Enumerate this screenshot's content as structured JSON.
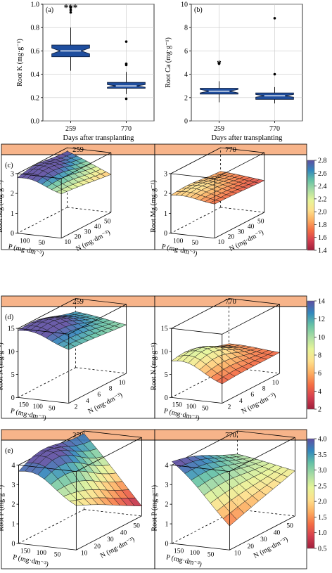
{
  "chart_data": [
    {
      "id": "a",
      "type": "boxplot",
      "panel_label": "(a)",
      "ylabel": "Root K (mg·g⁻¹)",
      "xlabel": "Days after transplanting",
      "categories": [
        "259",
        "770"
      ],
      "ylim": [
        0,
        1.0
      ],
      "yticks": [
        "0.0",
        "0.2",
        "0.4",
        "0.6",
        "0.8",
        "1.0"
      ],
      "boxes": [
        {
          "q1": 0.55,
          "median": 0.6,
          "q3": 0.65,
          "notch": 0.025,
          "whisker_low": 0.43,
          "whisker_high": 0.8,
          "outliers": [
            0.93,
            0.95,
            0.97
          ]
        },
        {
          "q1": 0.28,
          "median": 0.3,
          "q3": 0.33,
          "notch": 0.012,
          "whisker_low": 0.23,
          "whisker_high": 0.42,
          "outliers": [
            0.19,
            0.48,
            0.49,
            0.68
          ]
        }
      ],
      "annotation": "***",
      "fill_color": "#1f4e9e",
      "grid": true
    },
    {
      "id": "b",
      "type": "boxplot",
      "panel_label": "(b)",
      "ylabel": "Root Ca (mg·g⁻¹)",
      "xlabel": "Days after transplanting",
      "categories": [
        "259",
        "770"
      ],
      "ylim": [
        0,
        10
      ],
      "yticks": [
        "0",
        "2",
        "4",
        "6",
        "8",
        "10"
      ],
      "boxes": [
        {
          "q1": 2.3,
          "median": 2.55,
          "q3": 2.8,
          "notch": 0.15,
          "whisker_low": 1.6,
          "whisker_high": 3.4,
          "outliers": [
            4.9
          ]
        },
        {
          "q1": 1.85,
          "median": 2.15,
          "q3": 2.4,
          "notch": 0.12,
          "whisker_low": 1.5,
          "whisker_high": 2.9,
          "outliers": [
            4.0,
            8.8
          ]
        }
      ],
      "annotation": "*",
      "fill_color": "#1f4e9e",
      "grid": true
    },
    {
      "id": "c",
      "type": "surface3d",
      "panel_label": "(c)",
      "zlabel": "Root Mg (mg·g⁻¹)",
      "xlabel": "P (mg·dm⁻³)",
      "ylabel": "N (mg·dm⁻³)",
      "facets": [
        "259",
        "770"
      ],
      "zlim": [
        0,
        3
      ],
      "zticks": [
        "0",
        "1",
        "2",
        "3"
      ],
      "pticks": [
        "50",
        "100"
      ],
      "nticks": [
        "10",
        "20",
        "30",
        "40",
        "50"
      ],
      "surfaces": [
        {
          "corners": {
            "p0n0": 2.2,
            "pmaxn0": 2.6,
            "p0nmax": 1.9,
            "pmaxnmax": 2.8
          },
          "peak": 2.85
        },
        {
          "corners": {
            "p0n0": 1.7,
            "pmaxn0": 1.8,
            "p0nmax": 1.6,
            "pmaxnmax": 1.8
          },
          "peak": 2.0
        }
      ],
      "colorbar": {
        "min": 1.4,
        "max": 2.8,
        "ticks": [
          "1.4",
          "1.6",
          "1.8",
          "2.0",
          "2.2",
          "2.4",
          "2.6",
          "2.8"
        ]
      }
    },
    {
      "id": "d",
      "type": "surface3d",
      "panel_label": "(d)",
      "zlabel": "Root N (mg·g⁻¹)",
      "xlabel": "P (mg·dm⁻³)",
      "ylabel": "N (mg·dm⁻³)",
      "facets": [
        "259",
        "770"
      ],
      "zlim": [
        0,
        15
      ],
      "zticks": [
        "0",
        "5",
        "10",
        "15"
      ],
      "zlim_right": [
        0,
        14
      ],
      "zticks_right": [
        "2",
        "4",
        "6",
        "8",
        "10",
        "12",
        "14"
      ],
      "pticks": [
        "50",
        "100",
        "150"
      ],
      "nticks": [
        "2",
        "4",
        "6",
        "8",
        "10"
      ],
      "surfaces": [
        {
          "corners": {
            "p0n0": 11.5,
            "pmaxn0": 13.5,
            "p0nmax": 10.5,
            "pmaxnmax": 12.0
          },
          "peak": 14.5
        },
        {
          "corners": {
            "p0n0": 4.0,
            "pmaxn0": 6.5,
            "p0nmax": 4.5,
            "pmaxnmax": 5.0
          },
          "peak": 8.5
        }
      ],
      "colorbar": {
        "min": 2,
        "max": 14,
        "ticks": [
          "2",
          "4",
          "6",
          "8",
          "10",
          "12",
          "14"
        ]
      }
    },
    {
      "id": "e",
      "type": "surface3d",
      "panel_label": "(e)",
      "zlabel": "Root P (mg·g⁻¹)",
      "xlabel": "P (mg·dm⁻³)",
      "ylabel": "N (mg·dm⁻³)",
      "facets": [
        "259",
        "770"
      ],
      "zlim": [
        0,
        4
      ],
      "zticks": [
        "0",
        "1",
        "2",
        "3",
        "4"
      ],
      "pticks": [
        "50",
        "100",
        "150"
      ],
      "nticks": [
        "10",
        "20",
        "30",
        "40",
        "50"
      ],
      "surfaces": [
        {
          "corners": {
            "p0n0": 2.2,
            "pmaxn0": 3.2,
            "p0nmax": 0.5,
            "pmaxnmax": 3.8
          },
          "peak": 3.6
        },
        {
          "corners": {
            "p0n0": 1.2,
            "pmaxn0": 4.0,
            "p0nmax": 2.3,
            "pmaxnmax": 2.8
          },
          "peak": 3.0
        }
      ],
      "colorbar": {
        "min": 0.5,
        "max": 4.0,
        "ticks": [
          "0.5",
          "1.0",
          "1.5",
          "2.0",
          "2.5",
          "3.0",
          "3.5",
          "4.0"
        ]
      }
    }
  ],
  "colors": {
    "facet_strip": "#f7b48a",
    "box_fill": "#1f4e9e",
    "grid": "#c8c8c8",
    "palette": [
      "#9e1f3c",
      "#d53e4f",
      "#f46d43",
      "#fdae61",
      "#fee08b",
      "#e6f598",
      "#abdda4",
      "#66c2a5",
      "#3288bd",
      "#5e4fa2"
    ]
  }
}
